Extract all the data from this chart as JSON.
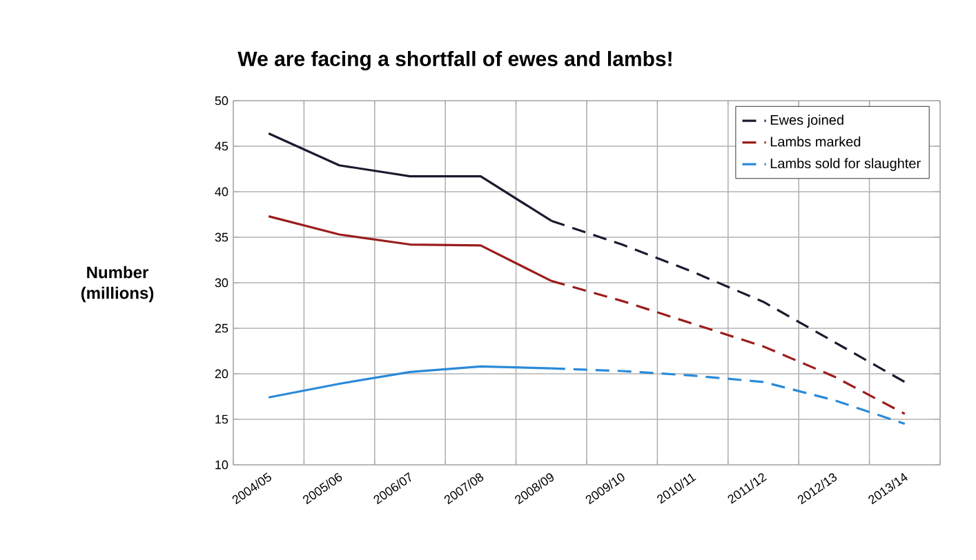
{
  "chart_data": {
    "type": "line",
    "title": "We are facing a shortfall of ewes and lambs!",
    "ylabel": "Number (millions)",
    "categories": [
      "2004/05",
      "2005/06",
      "2006/07",
      "2007/08",
      "2008/09",
      "2009/10",
      "2010/11",
      "2011/12",
      "2012/13",
      "2013/14"
    ],
    "ylim": [
      10,
      50
    ],
    "yticks": [
      10,
      15,
      20,
      25,
      30,
      35,
      40,
      45,
      50
    ],
    "grid": true,
    "legend": "top right",
    "marker": "none",
    "series": [
      {
        "color": "#1a1a2e",
        "line_style": "solid",
        "values": [
          46.4,
          42.9,
          41.7,
          41.7,
          36.8,
          null,
          null,
          null,
          null,
          null
        ]
      },
      {
        "color": "#9b1c1c",
        "line_style": "solid",
        "values": [
          37.3,
          35.3,
          34.2,
          34.1,
          30.2,
          null,
          null,
          null,
          null,
          null
        ]
      },
      {
        "color": "#2a8ad8",
        "line_style": "solid",
        "values": [
          17.4,
          18.9,
          20.2,
          20.8,
          20.6,
          null,
          null,
          null,
          null,
          null
        ]
      },
      {
        "name": "Ewes joined",
        "color": "#1a1a2e",
        "line_style": "dashed",
        "values": [
          null,
          null,
          null,
          null,
          36.8,
          34.2,
          31.2,
          27.9,
          23.5,
          19.1
        ]
      },
      {
        "name": "Lambs marked",
        "color": "#9b1c1c",
        "line_style": "dashed",
        "values": [
          null,
          null,
          null,
          null,
          30.2,
          28.0,
          25.5,
          23.0,
          19.7,
          15.6
        ]
      },
      {
        "name": "Lambs sold for slaughter",
        "color": "#2a8ad8",
        "line_style": "dashed",
        "values": [
          null,
          null,
          null,
          null,
          20.6,
          20.3,
          19.8,
          19.1,
          17.1,
          14.5
        ]
      }
    ]
  }
}
